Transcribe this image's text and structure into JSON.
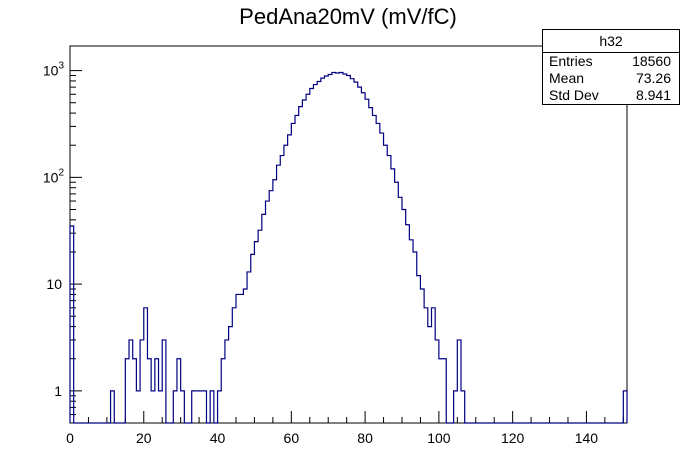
{
  "title": "PedAna20mV (mV/fC)",
  "stats": {
    "name": "h32",
    "rows": [
      {
        "label": "Entries",
        "value": "18560"
      },
      {
        "label": "Mean",
        "value": "73.26"
      },
      {
        "label": "Std Dev",
        "value": "8.941"
      }
    ]
  },
  "chart_data": {
    "type": "histogram",
    "title": "PedAna20mV (mV/fC)",
    "xlabel": "",
    "ylabel": "",
    "xlim": [
      0,
      151
    ],
    "ylim": [
      0.5,
      1700
    ],
    "log_y": true,
    "grid": false,
    "line_color": "#000080",
    "bin_width": 1,
    "x_ticks": [
      0,
      20,
      40,
      60,
      80,
      100,
      120,
      140
    ],
    "y_ticks": [
      {
        "value": 1,
        "label": "1"
      },
      {
        "value": 10,
        "label": "10"
      },
      {
        "value": 100,
        "label": "10²"
      },
      {
        "value": 1000,
        "label": "10³"
      }
    ],
    "bins": [
      {
        "x": 0,
        "y": 35
      },
      {
        "x": 11,
        "y": 1
      },
      {
        "x": 15,
        "y": 2
      },
      {
        "x": 16,
        "y": 3
      },
      {
        "x": 17,
        "y": 2
      },
      {
        "x": 18,
        "y": 1
      },
      {
        "x": 19,
        "y": 3
      },
      {
        "x": 20,
        "y": 6
      },
      {
        "x": 21,
        "y": 2
      },
      {
        "x": 22,
        "y": 1
      },
      {
        "x": 23,
        "y": 2
      },
      {
        "x": 24,
        "y": 1
      },
      {
        "x": 25,
        "y": 3
      },
      {
        "x": 28,
        "y": 1
      },
      {
        "x": 29,
        "y": 2
      },
      {
        "x": 30,
        "y": 1
      },
      {
        "x": 33,
        "y": 1
      },
      {
        "x": 34,
        "y": 1
      },
      {
        "x": 35,
        "y": 1
      },
      {
        "x": 36,
        "y": 1
      },
      {
        "x": 38,
        "y": 1
      },
      {
        "x": 40,
        "y": 1
      },
      {
        "x": 41,
        "y": 2
      },
      {
        "x": 42,
        "y": 3
      },
      {
        "x": 43,
        "y": 4
      },
      {
        "x": 44,
        "y": 6
      },
      {
        "x": 45,
        "y": 8
      },
      {
        "x": 46,
        "y": 8
      },
      {
        "x": 47,
        "y": 9
      },
      {
        "x": 48,
        "y": 13
      },
      {
        "x": 49,
        "y": 19
      },
      {
        "x": 50,
        "y": 25
      },
      {
        "x": 51,
        "y": 32
      },
      {
        "x": 52,
        "y": 45
      },
      {
        "x": 53,
        "y": 60
      },
      {
        "x": 54,
        "y": 75
      },
      {
        "x": 55,
        "y": 95
      },
      {
        "x": 56,
        "y": 130
      },
      {
        "x": 57,
        "y": 160
      },
      {
        "x": 58,
        "y": 200
      },
      {
        "x": 59,
        "y": 250
      },
      {
        "x": 60,
        "y": 320
      },
      {
        "x": 61,
        "y": 380
      },
      {
        "x": 62,
        "y": 460
      },
      {
        "x": 63,
        "y": 530
      },
      {
        "x": 64,
        "y": 600
      },
      {
        "x": 65,
        "y": 680
      },
      {
        "x": 66,
        "y": 740
      },
      {
        "x": 67,
        "y": 790
      },
      {
        "x": 68,
        "y": 850
      },
      {
        "x": 69,
        "y": 890
      },
      {
        "x": 70,
        "y": 920
      },
      {
        "x": 71,
        "y": 960
      },
      {
        "x": 72,
        "y": 950
      },
      {
        "x": 73,
        "y": 960
      },
      {
        "x": 74,
        "y": 930
      },
      {
        "x": 75,
        "y": 900
      },
      {
        "x": 76,
        "y": 840
      },
      {
        "x": 77,
        "y": 780
      },
      {
        "x": 78,
        "y": 700
      },
      {
        "x": 79,
        "y": 620
      },
      {
        "x": 80,
        "y": 540
      },
      {
        "x": 81,
        "y": 450
      },
      {
        "x": 82,
        "y": 380
      },
      {
        "x": 83,
        "y": 320
      },
      {
        "x": 84,
        "y": 260
      },
      {
        "x": 85,
        "y": 200
      },
      {
        "x": 86,
        "y": 160
      },
      {
        "x": 87,
        "y": 120
      },
      {
        "x": 88,
        "y": 90
      },
      {
        "x": 89,
        "y": 65
      },
      {
        "x": 90,
        "y": 50
      },
      {
        "x": 91,
        "y": 36
      },
      {
        "x": 92,
        "y": 26
      },
      {
        "x": 93,
        "y": 20
      },
      {
        "x": 94,
        "y": 12
      },
      {
        "x": 95,
        "y": 9
      },
      {
        "x": 96,
        "y": 6
      },
      {
        "x": 97,
        "y": 4
      },
      {
        "x": 98,
        "y": 6
      },
      {
        "x": 99,
        "y": 3
      },
      {
        "x": 100,
        "y": 2
      },
      {
        "x": 101,
        "y": 2
      },
      {
        "x": 104,
        "y": 1
      },
      {
        "x": 105,
        "y": 3
      },
      {
        "x": 106,
        "y": 1
      },
      {
        "x": 150,
        "y": 1
      }
    ]
  }
}
